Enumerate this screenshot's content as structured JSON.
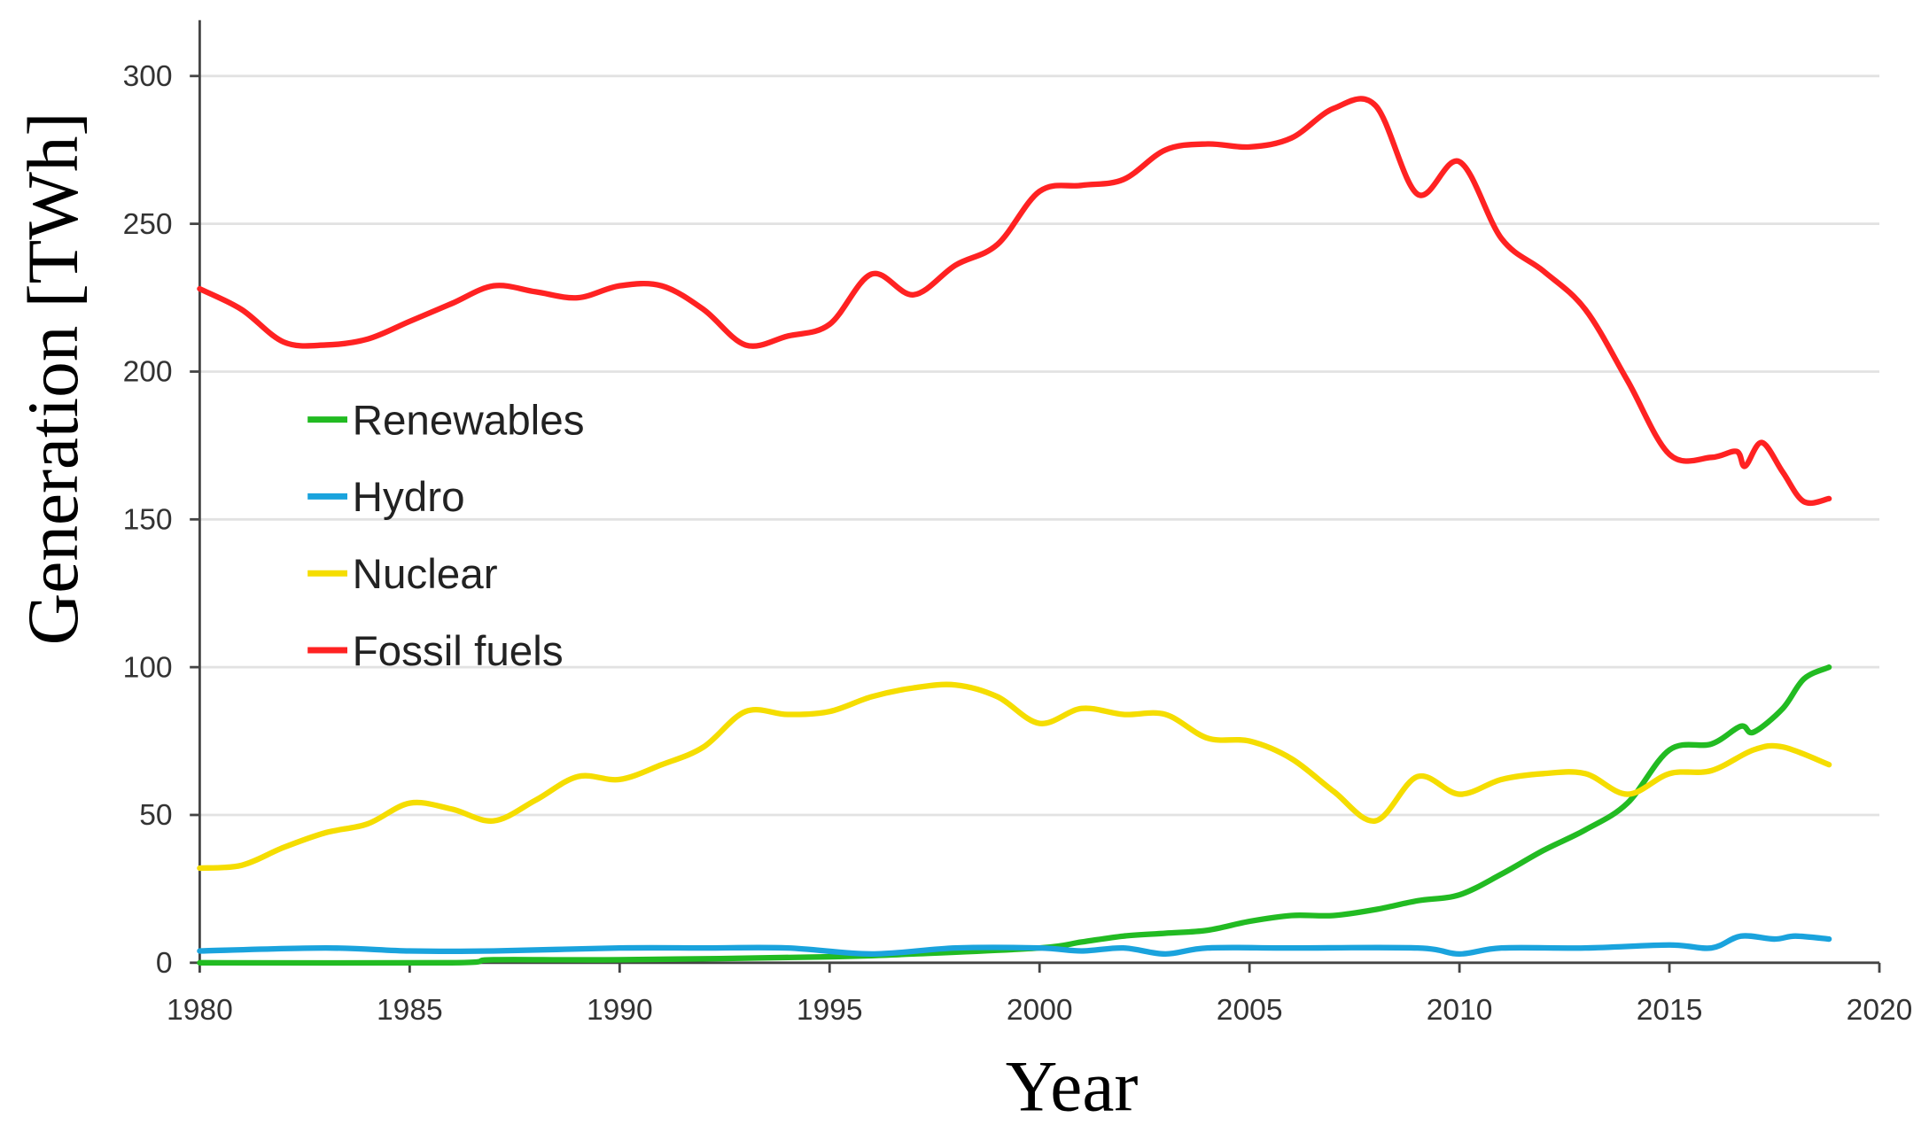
{
  "chart_data": {
    "type": "line",
    "title": "",
    "xlabel": "Year",
    "ylabel": "Generation [TWh]",
    "xlim": [
      1980,
      2020
    ],
    "ylim": [
      0,
      300
    ],
    "xticks": [
      1980,
      1985,
      1990,
      1995,
      2000,
      2005,
      2010,
      2015,
      2020
    ],
    "yticks": [
      0,
      50,
      100,
      150,
      200,
      250,
      300
    ],
    "grid": "horizontal",
    "legend_position": "center-left",
    "series": [
      {
        "name": "Renewables",
        "color": "#22bb22",
        "x": [
          1980,
          1986,
          1987,
          1990,
          1995,
          1997,
          2000,
          2001,
          2002,
          2003,
          2004,
          2005,
          2006,
          2007,
          2008,
          2009,
          2010,
          2011,
          2012,
          2013,
          2014,
          2015,
          2016,
          2016.7,
          2017,
          2017.7,
          2018.2,
          2018.8
        ],
        "y": [
          0,
          0,
          1,
          1,
          2,
          3,
          5,
          7,
          9,
          10,
          11,
          14,
          16,
          16,
          18,
          21,
          23,
          30,
          38,
          45,
          54,
          72,
          74,
          80,
          78,
          86,
          96,
          100
        ]
      },
      {
        "name": "Hydro",
        "color": "#1aa3dd",
        "x": [
          1980,
          1983,
          1985,
          1987,
          1990,
          1992,
          1994,
          1996,
          1998,
          2000,
          2001,
          2002,
          2003,
          2004,
          2006,
          2009,
          2010,
          2011,
          2013,
          2015,
          2016,
          2016.7,
          2017.5,
          2018,
          2018.8
        ],
        "y": [
          4,
          5,
          4,
          4,
          5,
          5,
          5,
          3,
          5,
          5,
          4,
          5,
          3,
          5,
          5,
          5,
          3,
          5,
          5,
          6,
          5,
          9,
          8,
          9,
          8
        ]
      },
      {
        "name": "Nuclear",
        "color": "#f5dd00",
        "x": [
          1980,
          1981,
          1982,
          1983,
          1984,
          1985,
          1986,
          1987,
          1988,
          1989,
          1990,
          1991,
          1992,
          1993,
          1994,
          1995,
          1996,
          1997,
          1998,
          1999,
          2000,
          2001,
          2002,
          2003,
          2004,
          2005,
          2006,
          2007,
          2008,
          2009,
          2010,
          2011,
          2012,
          2013,
          2014,
          2015,
          2016,
          2017,
          2017.7,
          2018.8
        ],
        "y": [
          32,
          33,
          39,
          44,
          47,
          54,
          52,
          48,
          55,
          63,
          62,
          67,
          73,
          85,
          84,
          85,
          90,
          93,
          94,
          90,
          81,
          86,
          84,
          84,
          76,
          75,
          69,
          58,
          48,
          63,
          57,
          62,
          64,
          64,
          57,
          64,
          65,
          72,
          73,
          67
        ]
      },
      {
        "name": "Fossil fuels",
        "color": "#ff2222",
        "x": [
          1980,
          1981,
          1982,
          1983,
          1984,
          1985,
          1986,
          1987,
          1988,
          1989,
          1990,
          1991,
          1992,
          1993,
          1994,
          1995,
          1996,
          1997,
          1998,
          1999,
          2000,
          2001,
          2002,
          2003,
          2004,
          2005,
          2006,
          2007,
          2008,
          2009,
          2010,
          2011,
          2012,
          2013,
          2014,
          2015,
          2016,
          2016.6,
          2016.8,
          2017.2,
          2017.7,
          2018.2,
          2018.8
        ],
        "y": [
          228,
          221,
          210,
          209,
          211,
          217,
          223,
          229,
          227,
          225,
          229,
          229,
          221,
          209,
          212,
          216,
          233,
          226,
          236,
          243,
          261,
          263,
          265,
          275,
          277,
          276,
          279,
          289,
          290,
          260,
          271,
          245,
          234,
          221,
          197,
          172,
          171,
          173,
          168,
          176,
          166,
          156,
          157
        ]
      }
    ]
  }
}
